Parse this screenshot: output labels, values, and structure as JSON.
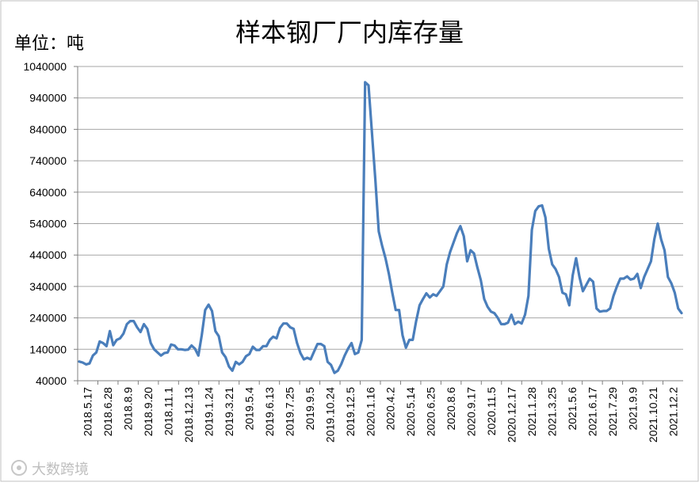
{
  "chart_data": {
    "type": "line",
    "title": "样本钢厂厂内库存量",
    "unit_label": "单位：吨",
    "watermark": "大数跨境",
    "ylim": [
      40000,
      1040000
    ],
    "y_ticks": [
      40000,
      140000,
      240000,
      340000,
      440000,
      540000,
      640000,
      740000,
      840000,
      940000,
      1040000
    ],
    "y_tick_labels": [
      "40000",
      "140000",
      "240000",
      "340000",
      "440000",
      "540000",
      "640000",
      "740000",
      "840000",
      "940000",
      "1040000"
    ],
    "x_tick_labels": [
      "2018.5.17",
      "2018.6.28",
      "2018.8.9",
      "2018.9.20",
      "2018.11.1",
      "2018.12.13",
      "2019.1.24",
      "2019.3.21",
      "2019.5.4",
      "2019.6.13",
      "2019.7.25",
      "2019.9.5",
      "2019.10.24",
      "2019.12.5",
      "2020.1.16",
      "2020.4.2",
      "2020.5.14",
      "2020.6.25",
      "2020.8.6",
      "2020.9.17",
      "2020.11.5",
      "2020.12.17",
      "2021.1.28",
      "2021.3.25",
      "2021.5.6",
      "2021.6.17",
      "2021.7.29",
      "2021.9.9",
      "2021.10.21",
      "2021.12.2"
    ],
    "grid": true,
    "line_color": "#4a7ebb",
    "series": [
      {
        "values": [
          101000,
          98000,
          92000,
          95000,
          120000,
          130000,
          165000,
          160000,
          150000,
          198000,
          153000,
          170000,
          175000,
          190000,
          220000,
          230000,
          230000,
          210000,
          195000,
          220000,
          205000,
          160000,
          140000,
          130000,
          120000,
          128000,
          130000,
          155000,
          152000,
          140000,
          140000,
          138000,
          139000,
          152000,
          142000,
          120000,
          185000,
          265000,
          282000,
          262000,
          198000,
          182000,
          130000,
          115000,
          85000,
          72000,
          100000,
          92000,
          100000,
          118000,
          125000,
          148000,
          138000,
          138000,
          150000,
          150000,
          170000,
          180000,
          175000,
          208000,
          222000,
          222000,
          210000,
          205000,
          160000,
          128000,
          108000,
          113000,
          108000,
          133000,
          157000,
          157000,
          150000,
          100000,
          90000,
          65000,
          72000,
          93000,
          120000,
          142000,
          160000,
          125000,
          130000,
          170000,
          990000,
          980000,
          830000,
          680000,
          515000,
          470000,
          430000,
          380000,
          320000,
          265000,
          265000,
          185000,
          145000,
          170000,
          170000,
          230000,
          280000,
          300000,
          318000,
          305000,
          315000,
          310000,
          325000,
          340000,
          410000,
          450000,
          480000,
          510000,
          532000,
          500000,
          420000,
          455000,
          445000,
          400000,
          360000,
          300000,
          275000,
          260000,
          255000,
          240000,
          220000,
          220000,
          225000,
          250000,
          220000,
          228000,
          222000,
          250000,
          310000,
          520000,
          580000,
          595000,
          598000,
          560000,
          460000,
          410000,
          395000,
          370000,
          320000,
          315000,
          280000,
          375000,
          430000,
          370000,
          325000,
          345000,
          365000,
          355000,
          270000,
          260000,
          262000,
          262000,
          270000,
          310000,
          340000,
          365000,
          365000,
          372000,
          362000,
          365000,
          380000,
          335000,
          370000,
          395000,
          420000,
          490000,
          540000,
          490000,
          455000,
          370000,
          350000,
          320000,
          270000,
          255000
        ]
      }
    ]
  }
}
